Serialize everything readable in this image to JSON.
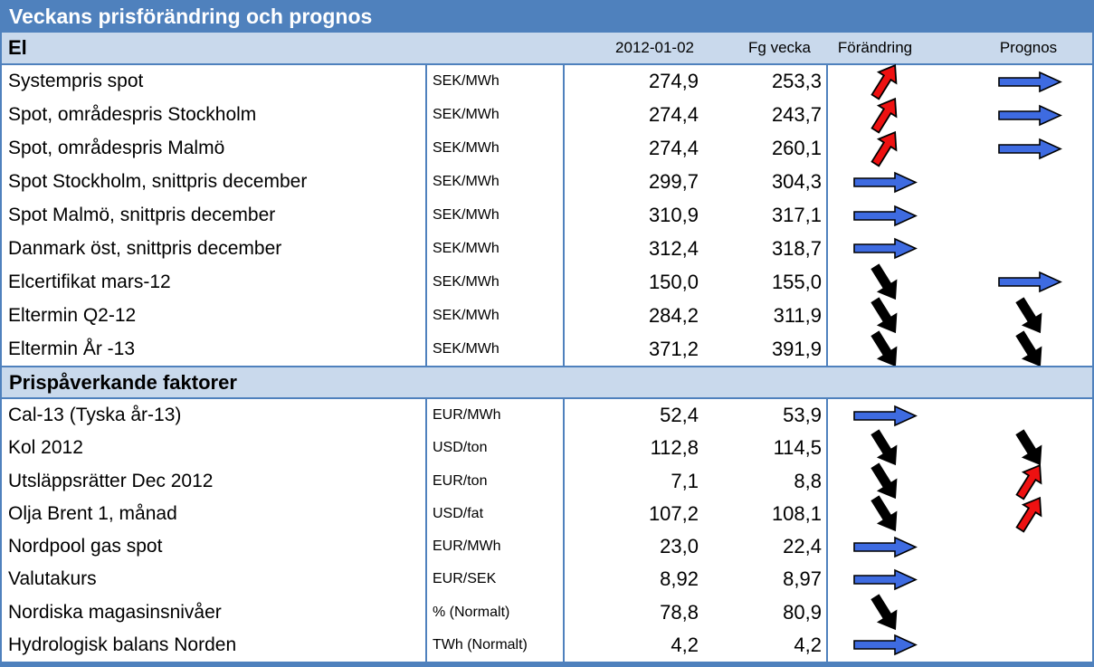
{
  "title": "Veckans prisförändring och prognos",
  "columns": {
    "date": "2012-01-02",
    "prev": "Fg vecka",
    "change": "Förändring",
    "forecast": "Prognos"
  },
  "arrow_colors": {
    "up": "#ee1111",
    "down": "#000000",
    "flat": "#3e6be1"
  },
  "arrow_outline": "#000000",
  "sections": [
    {
      "title": "El",
      "rows": [
        {
          "name": "Systempris spot",
          "unit": "SEK/MWh",
          "current": "274,9",
          "previous": "253,3",
          "change": "up",
          "forecast": "flat"
        },
        {
          "name": "Spot, områdespris Stockholm",
          "unit": "SEK/MWh",
          "current": "274,4",
          "previous": "243,7",
          "change": "up",
          "forecast": "flat"
        },
        {
          "name": "Spot, områdespris Malmö",
          "unit": "SEK/MWh",
          "current": "274,4",
          "previous": "260,1",
          "change": "up",
          "forecast": "flat"
        },
        {
          "name": "Spot Stockholm, snittpris december",
          "unit": "SEK/MWh",
          "current": "299,7",
          "previous": "304,3",
          "change": "flat",
          "forecast": null
        },
        {
          "name": "Spot Malmö, snittpris december",
          "unit": "SEK/MWh",
          "current": "310,9",
          "previous": "317,1",
          "change": "flat",
          "forecast": null
        },
        {
          "name": "Danmark öst, snittpris december",
          "unit": "SEK/MWh",
          "current": "312,4",
          "previous": "318,7",
          "change": "flat",
          "forecast": null
        },
        {
          "name": "Elcertifikat mars-12",
          "unit": "SEK/MWh",
          "current": "150,0",
          "previous": "155,0",
          "change": "down",
          "forecast": "flat"
        },
        {
          "name": "Eltermin Q2-12",
          "unit": "SEK/MWh",
          "current": "284,2",
          "previous": "311,9",
          "change": "down",
          "forecast": "down"
        },
        {
          "name": "Eltermin År -13",
          "unit": "SEK/MWh",
          "current": "371,2",
          "previous": "391,9",
          "change": "down",
          "forecast": "down"
        }
      ]
    },
    {
      "title": "Prispåverkande faktorer",
      "rows": [
        {
          "name": "Cal-13 (Tyska år-13)",
          "unit": "EUR/MWh",
          "current": "52,4",
          "previous": "53,9",
          "change": "flat",
          "forecast": null
        },
        {
          "name": "Kol 2012",
          "unit": "USD/ton",
          "current": "112,8",
          "previous": "114,5",
          "change": "down",
          "forecast": "down"
        },
        {
          "name": "Utsläppsrätter Dec 2012",
          "unit": "EUR/ton",
          "current": "7,1",
          "previous": "8,8",
          "change": "down",
          "forecast": "up"
        },
        {
          "name": "Olja Brent 1, månad",
          "unit": "USD/fat",
          "current": "107,2",
          "previous": "108,1",
          "change": "down",
          "forecast": "up"
        },
        {
          "name": "Nordpool gas spot",
          "unit": "EUR/MWh",
          "current": "23,0",
          "previous": "22,4",
          "change": "flat",
          "forecast": null
        },
        {
          "name": "Valutakurs",
          "unit": "EUR/SEK",
          "current": "8,92",
          "previous": "8,97",
          "change": "flat",
          "forecast": null
        },
        {
          "name": "Nordiska magasinsnivåer",
          "unit": "% (Normalt)",
          "current": "78,8",
          "previous": "80,9",
          "change": "down",
          "forecast": null
        },
        {
          "name": "Hydrologisk balans Norden",
          "unit": "TWh (Normalt)",
          "current": "4,2",
          "previous": "4,2",
          "change": "flat",
          "forecast": null
        }
      ]
    }
  ]
}
